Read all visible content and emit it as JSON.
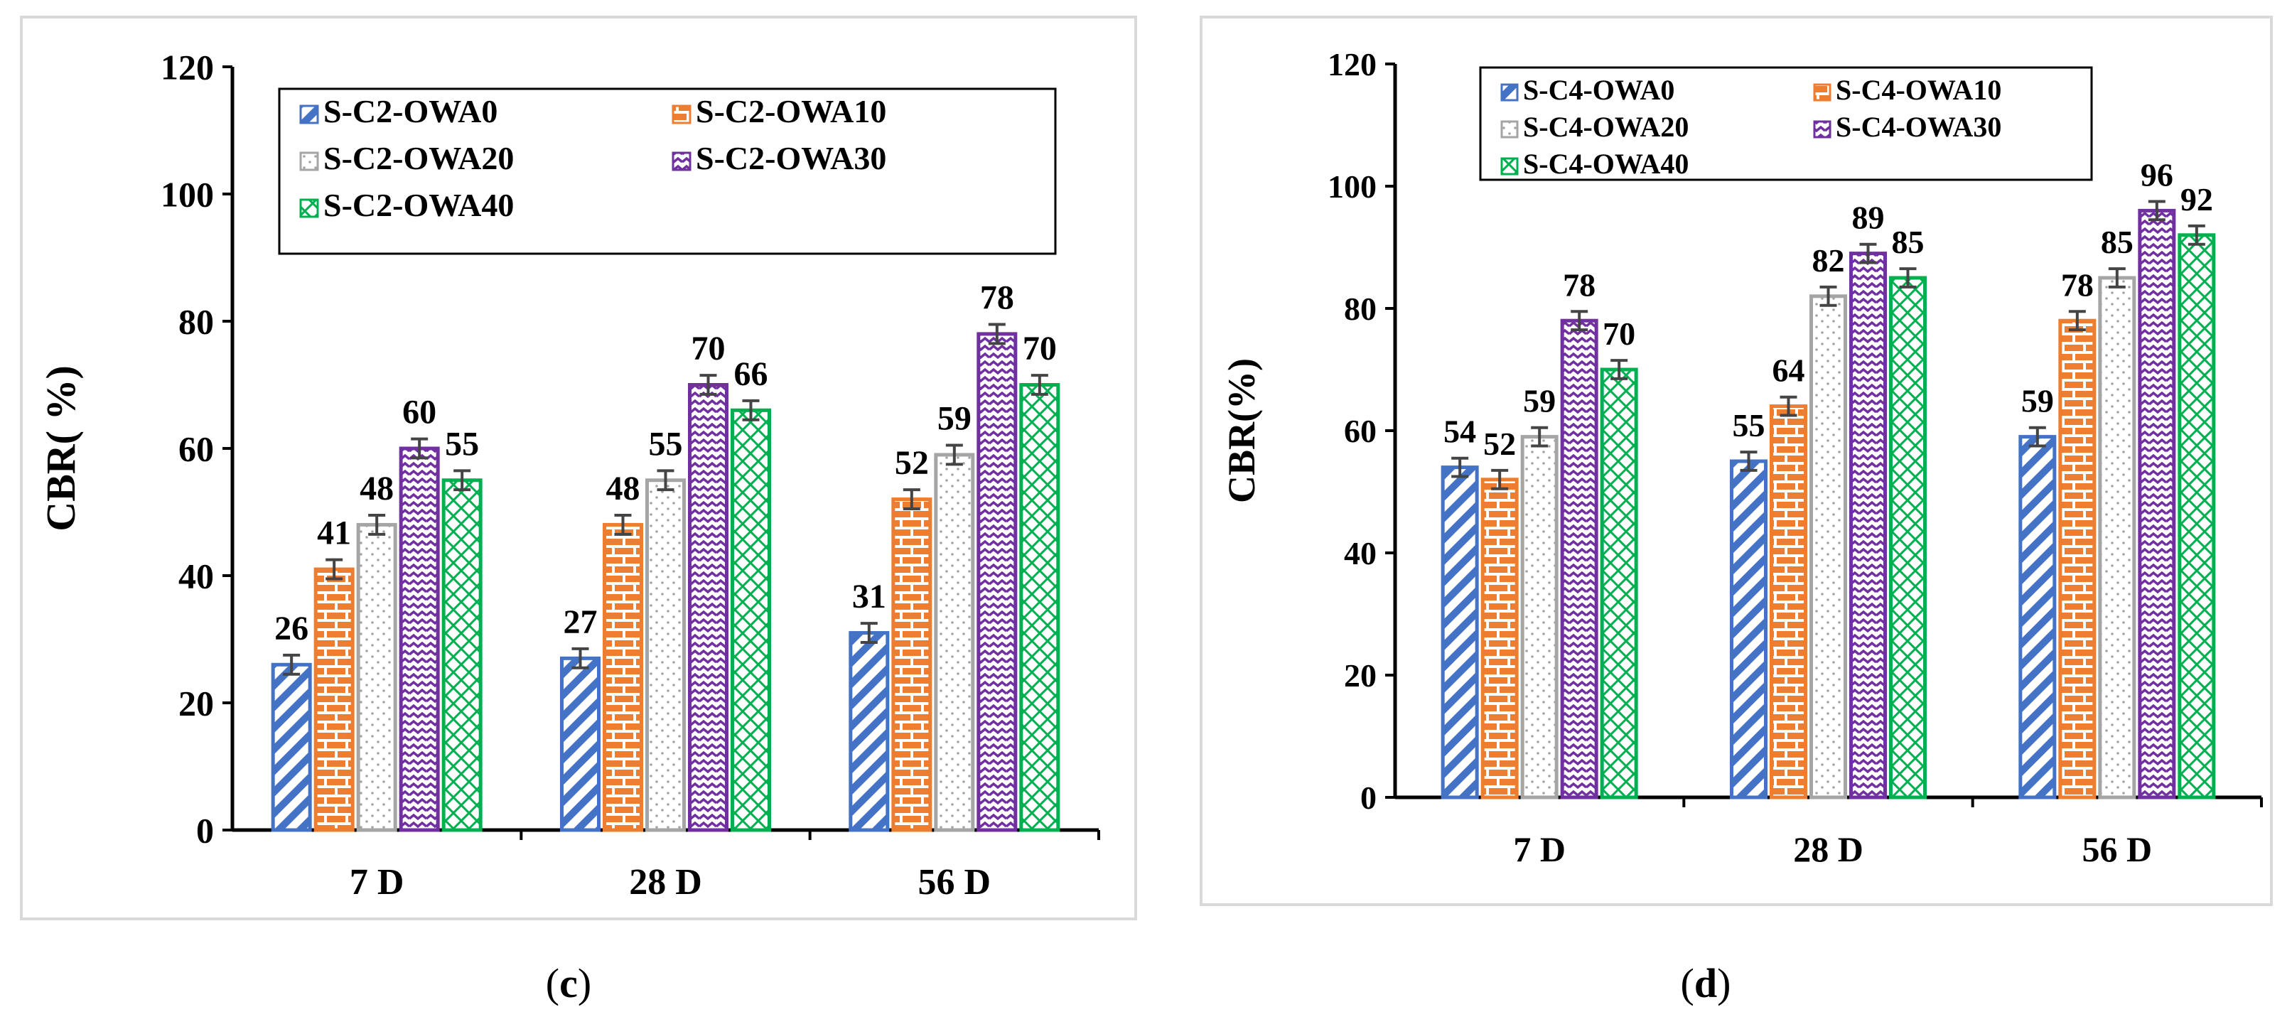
{
  "chart_data": [
    {
      "type": "bar",
      "panel_label": "c",
      "categories": [
        "7 D",
        "28 D",
        "56 D"
      ],
      "ylabel": "CBR( %)",
      "ylim": [
        0,
        120
      ],
      "yticks": [
        0,
        20,
        40,
        60,
        80,
        100,
        120
      ],
      "legend_position": "top-right",
      "legend_columns": 2,
      "error_bars": true,
      "series": [
        {
          "name": "S-C2-OWA0",
          "values": [
            26,
            27,
            31
          ],
          "labels": [
            "26",
            "27",
            "31"
          ],
          "color": "#4472C4",
          "pattern": "diag"
        },
        {
          "name": "S-C2-OWA10",
          "values": [
            41,
            48,
            52
          ],
          "labels": [
            "41",
            "48",
            "52"
          ],
          "color": "#ED7D31",
          "pattern": "brick"
        },
        {
          "name": "S-C2-OWA20",
          "values": [
            48,
            55,
            59
          ],
          "labels": [
            "48",
            "55",
            "59"
          ],
          "color": "#A5A5A5",
          "pattern": "dots"
        },
        {
          "name": "S-C2-OWA30",
          "values": [
            60,
            70,
            78
          ],
          "labels": [
            "60",
            "70",
            "78"
          ],
          "color": "#7030A0",
          "pattern": "wave"
        },
        {
          "name": "S-C2-OWA40",
          "values": [
            55,
            66,
            70
          ],
          "labels": [
            "55",
            "66",
            "70"
          ],
          "color": "#00B050",
          "pattern": "cross"
        }
      ]
    },
    {
      "type": "bar",
      "panel_label": "d",
      "categories": [
        "7 D",
        "28 D",
        "56 D"
      ],
      "ylabel": "CBR(%)",
      "ylim": [
        0,
        120
      ],
      "yticks": [
        0,
        20,
        40,
        60,
        80,
        100,
        120
      ],
      "legend_position": "top-left",
      "legend_columns": 2,
      "error_bars": true,
      "series": [
        {
          "name": "S-C4-OWA0",
          "values": [
            54,
            55,
            59
          ],
          "labels": [
            "54",
            "55",
            "59"
          ],
          "color": "#4472C4",
          "pattern": "diag"
        },
        {
          "name": "S-C4-OWA10",
          "values": [
            52,
            64,
            78
          ],
          "labels": [
            "52",
            "64",
            "78"
          ],
          "color": "#ED7D31",
          "pattern": "brick"
        },
        {
          "name": "S-C4-OWA20",
          "values": [
            59,
            82,
            85
          ],
          "labels": [
            "59",
            "82",
            "85"
          ],
          "color": "#A5A5A5",
          "pattern": "dots"
        },
        {
          "name": "S-C4-OWA30",
          "values": [
            78,
            89,
            96
          ],
          "labels": [
            "78",
            "89",
            "96"
          ],
          "color": "#7030A0",
          "pattern": "wave"
        },
        {
          "name": "S-C4-OWA40",
          "values": [
            70,
            85,
            92
          ],
          "labels": [
            "70",
            "85",
            "92"
          ],
          "color": "#00B050",
          "pattern": "cross"
        }
      ]
    }
  ],
  "captions": {
    "c": "c",
    "d": "d"
  }
}
